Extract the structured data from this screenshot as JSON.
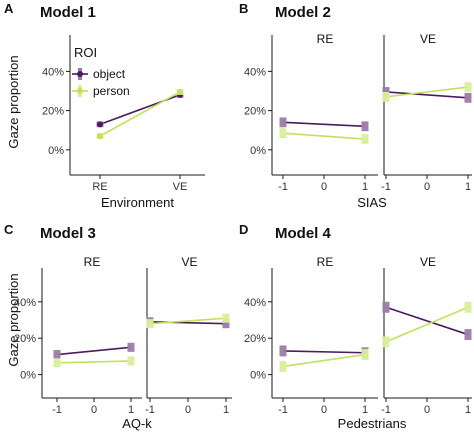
{
  "colors": {
    "object": "#4b1b5e",
    "person": "#bfe35a",
    "object_bar": "#9b7ba8",
    "person_bar": "#d9ef9a",
    "axis": "#1a1a1a",
    "tick_text": "#333333"
  },
  "chart_data": [
    {
      "type": "line",
      "panel": "A",
      "title": "Model 1",
      "xlabel": "Environment",
      "ylabel": "Gaze proportion",
      "facets": [
        ""
      ],
      "x_categories": [
        "RE",
        "VE"
      ],
      "yticks": [
        "0%",
        "20%",
        "40%"
      ],
      "ylim": [
        0,
        0.48
      ],
      "legend": {
        "title": "ROI",
        "position": "top-left",
        "entries": [
          "object",
          "person"
        ]
      },
      "series": [
        {
          "name": "object",
          "facet": 0,
          "x": [
            "RE",
            "VE"
          ],
          "values": [
            0.13,
            0.28
          ],
          "errors": [
            0.015,
            0.015
          ]
        },
        {
          "name": "person",
          "facet": 0,
          "x": [
            "RE",
            "VE"
          ],
          "values": [
            0.07,
            0.295
          ],
          "errors": [
            0.015,
            0.015
          ]
        }
      ]
    },
    {
      "type": "line",
      "panel": "B",
      "title": "Model 2",
      "xlabel": "SIAS",
      "ylabel": "",
      "facets": [
        "RE",
        "VE"
      ],
      "xticks": [
        "-1",
        "0",
        "1"
      ],
      "yticks": [
        "0%",
        "20%",
        "40%"
      ],
      "ylim": [
        0,
        0.48
      ],
      "series": [
        {
          "name": "object",
          "facet": 0,
          "x": [
            -1,
            1
          ],
          "values": [
            0.14,
            0.12
          ],
          "errors": [
            0.025,
            0.025
          ]
        },
        {
          "name": "person",
          "facet": 0,
          "x": [
            -1,
            1
          ],
          "values": [
            0.085,
            0.055
          ],
          "errors": [
            0.025,
            0.025
          ]
        },
        {
          "name": "object",
          "facet": 1,
          "x": [
            -1,
            1
          ],
          "values": [
            0.295,
            0.265
          ],
          "errors": [
            0.025,
            0.025
          ]
        },
        {
          "name": "person",
          "facet": 1,
          "x": [
            -1,
            1
          ],
          "values": [
            0.27,
            0.32
          ],
          "errors": [
            0.025,
            0.025
          ]
        }
      ]
    },
    {
      "type": "line",
      "panel": "C",
      "title": "Model 3",
      "xlabel": "AQ-k",
      "ylabel": "Gaze proportion",
      "facets": [
        "RE",
        "VE"
      ],
      "xticks": [
        "-1",
        "0",
        "1"
      ],
      "yticks": [
        "0%",
        "20%",
        "40%"
      ],
      "ylim": [
        0,
        0.48
      ],
      "series": [
        {
          "name": "object",
          "facet": 0,
          "x": [
            -1,
            1
          ],
          "values": [
            0.11,
            0.15
          ],
          "errors": [
            0.025,
            0.025
          ]
        },
        {
          "name": "person",
          "facet": 0,
          "x": [
            -1,
            1
          ],
          "values": [
            0.065,
            0.075
          ],
          "errors": [
            0.025,
            0.025
          ]
        },
        {
          "name": "object",
          "facet": 1,
          "x": [
            -1,
            1
          ],
          "values": [
            0.29,
            0.28
          ],
          "errors": [
            0.025,
            0.025
          ]
        },
        {
          "name": "person",
          "facet": 1,
          "x": [
            -1,
            1
          ],
          "values": [
            0.28,
            0.31
          ],
          "errors": [
            0.025,
            0.025
          ]
        }
      ]
    },
    {
      "type": "line",
      "panel": "D",
      "title": "Model 4",
      "xlabel": "Pedestrians",
      "ylabel": "",
      "facets": [
        "RE",
        "VE"
      ],
      "xticks": [
        "-1",
        "0",
        "1"
      ],
      "yticks": [
        "0%",
        "20%",
        "40%"
      ],
      "ylim": [
        0,
        0.48
      ],
      "series": [
        {
          "name": "object",
          "facet": 0,
          "x": [
            -1,
            1
          ],
          "values": [
            0.13,
            0.12
          ],
          "errors": [
            0.03,
            0.03
          ]
        },
        {
          "name": "person",
          "facet": 0,
          "x": [
            -1,
            1
          ],
          "values": [
            0.045,
            0.11
          ],
          "errors": [
            0.03,
            0.03
          ]
        },
        {
          "name": "object",
          "facet": 1,
          "x": [
            -1,
            1
          ],
          "values": [
            0.37,
            0.22
          ],
          "errors": [
            0.03,
            0.03
          ]
        },
        {
          "name": "person",
          "facet": 1,
          "x": [
            -1,
            1
          ],
          "values": [
            0.18,
            0.37
          ],
          "errors": [
            0.03,
            0.03
          ]
        }
      ]
    }
  ]
}
